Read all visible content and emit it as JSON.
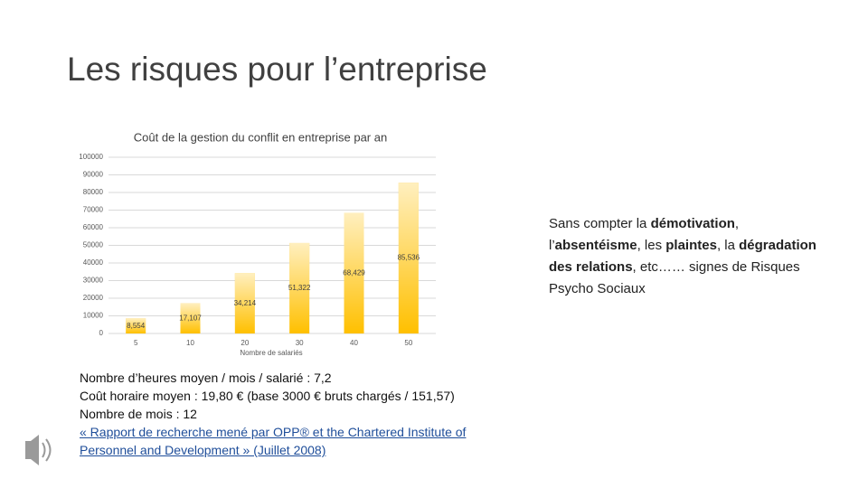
{
  "slide_title": "Les risques pour l’entreprise",
  "chart_data": {
    "type": "bar",
    "title": "Coût de la gestion du conflit en entreprise par an",
    "x_label": "Nombre de salariés",
    "categories": [
      "5",
      "10",
      "20",
      "30",
      "40",
      "50"
    ],
    "values": [
      8554,
      17107,
      34214,
      51322,
      68429,
      85536
    ],
    "value_labels": [
      "8,554",
      "17,107",
      "34,214",
      "51,322",
      "68,429",
      "85,536"
    ],
    "color": "#ffc000",
    "ylim": [
      0,
      100000
    ],
    "yticks": [
      0,
      10000,
      20000,
      30000,
      40000,
      50000,
      60000,
      70000,
      80000,
      90000,
      100000
    ],
    "grid": true
  },
  "side_text": [
    {
      "text": "Sans compter la ",
      "bold": false
    },
    {
      "text": "démotivation",
      "bold": true
    },
    {
      "text": ", l’",
      "bold": false
    },
    {
      "text": "absentéisme",
      "bold": true
    },
    {
      "text": ", les ",
      "bold": false
    },
    {
      "text": "plaintes",
      "bold": true
    },
    {
      "text": ", la ",
      "bold": false
    },
    {
      "text": "dégradation des relations",
      "bold": true
    },
    {
      "text": ", etc…… signes de Risques Psycho Sociaux",
      "bold": false
    }
  ],
  "notes": [
    "Nombre d’heures moyen / mois / salarié : 7,2",
    "Coût horaire moyen : 19,80 € (base 3000 € bruts chargés / 151,57)",
    "Nombre de mois : 12"
  ],
  "link": "« Rapport de recherche mené par OPP® et the Chartered Institute of Personnel and Development » (Juillet 2008)"
}
